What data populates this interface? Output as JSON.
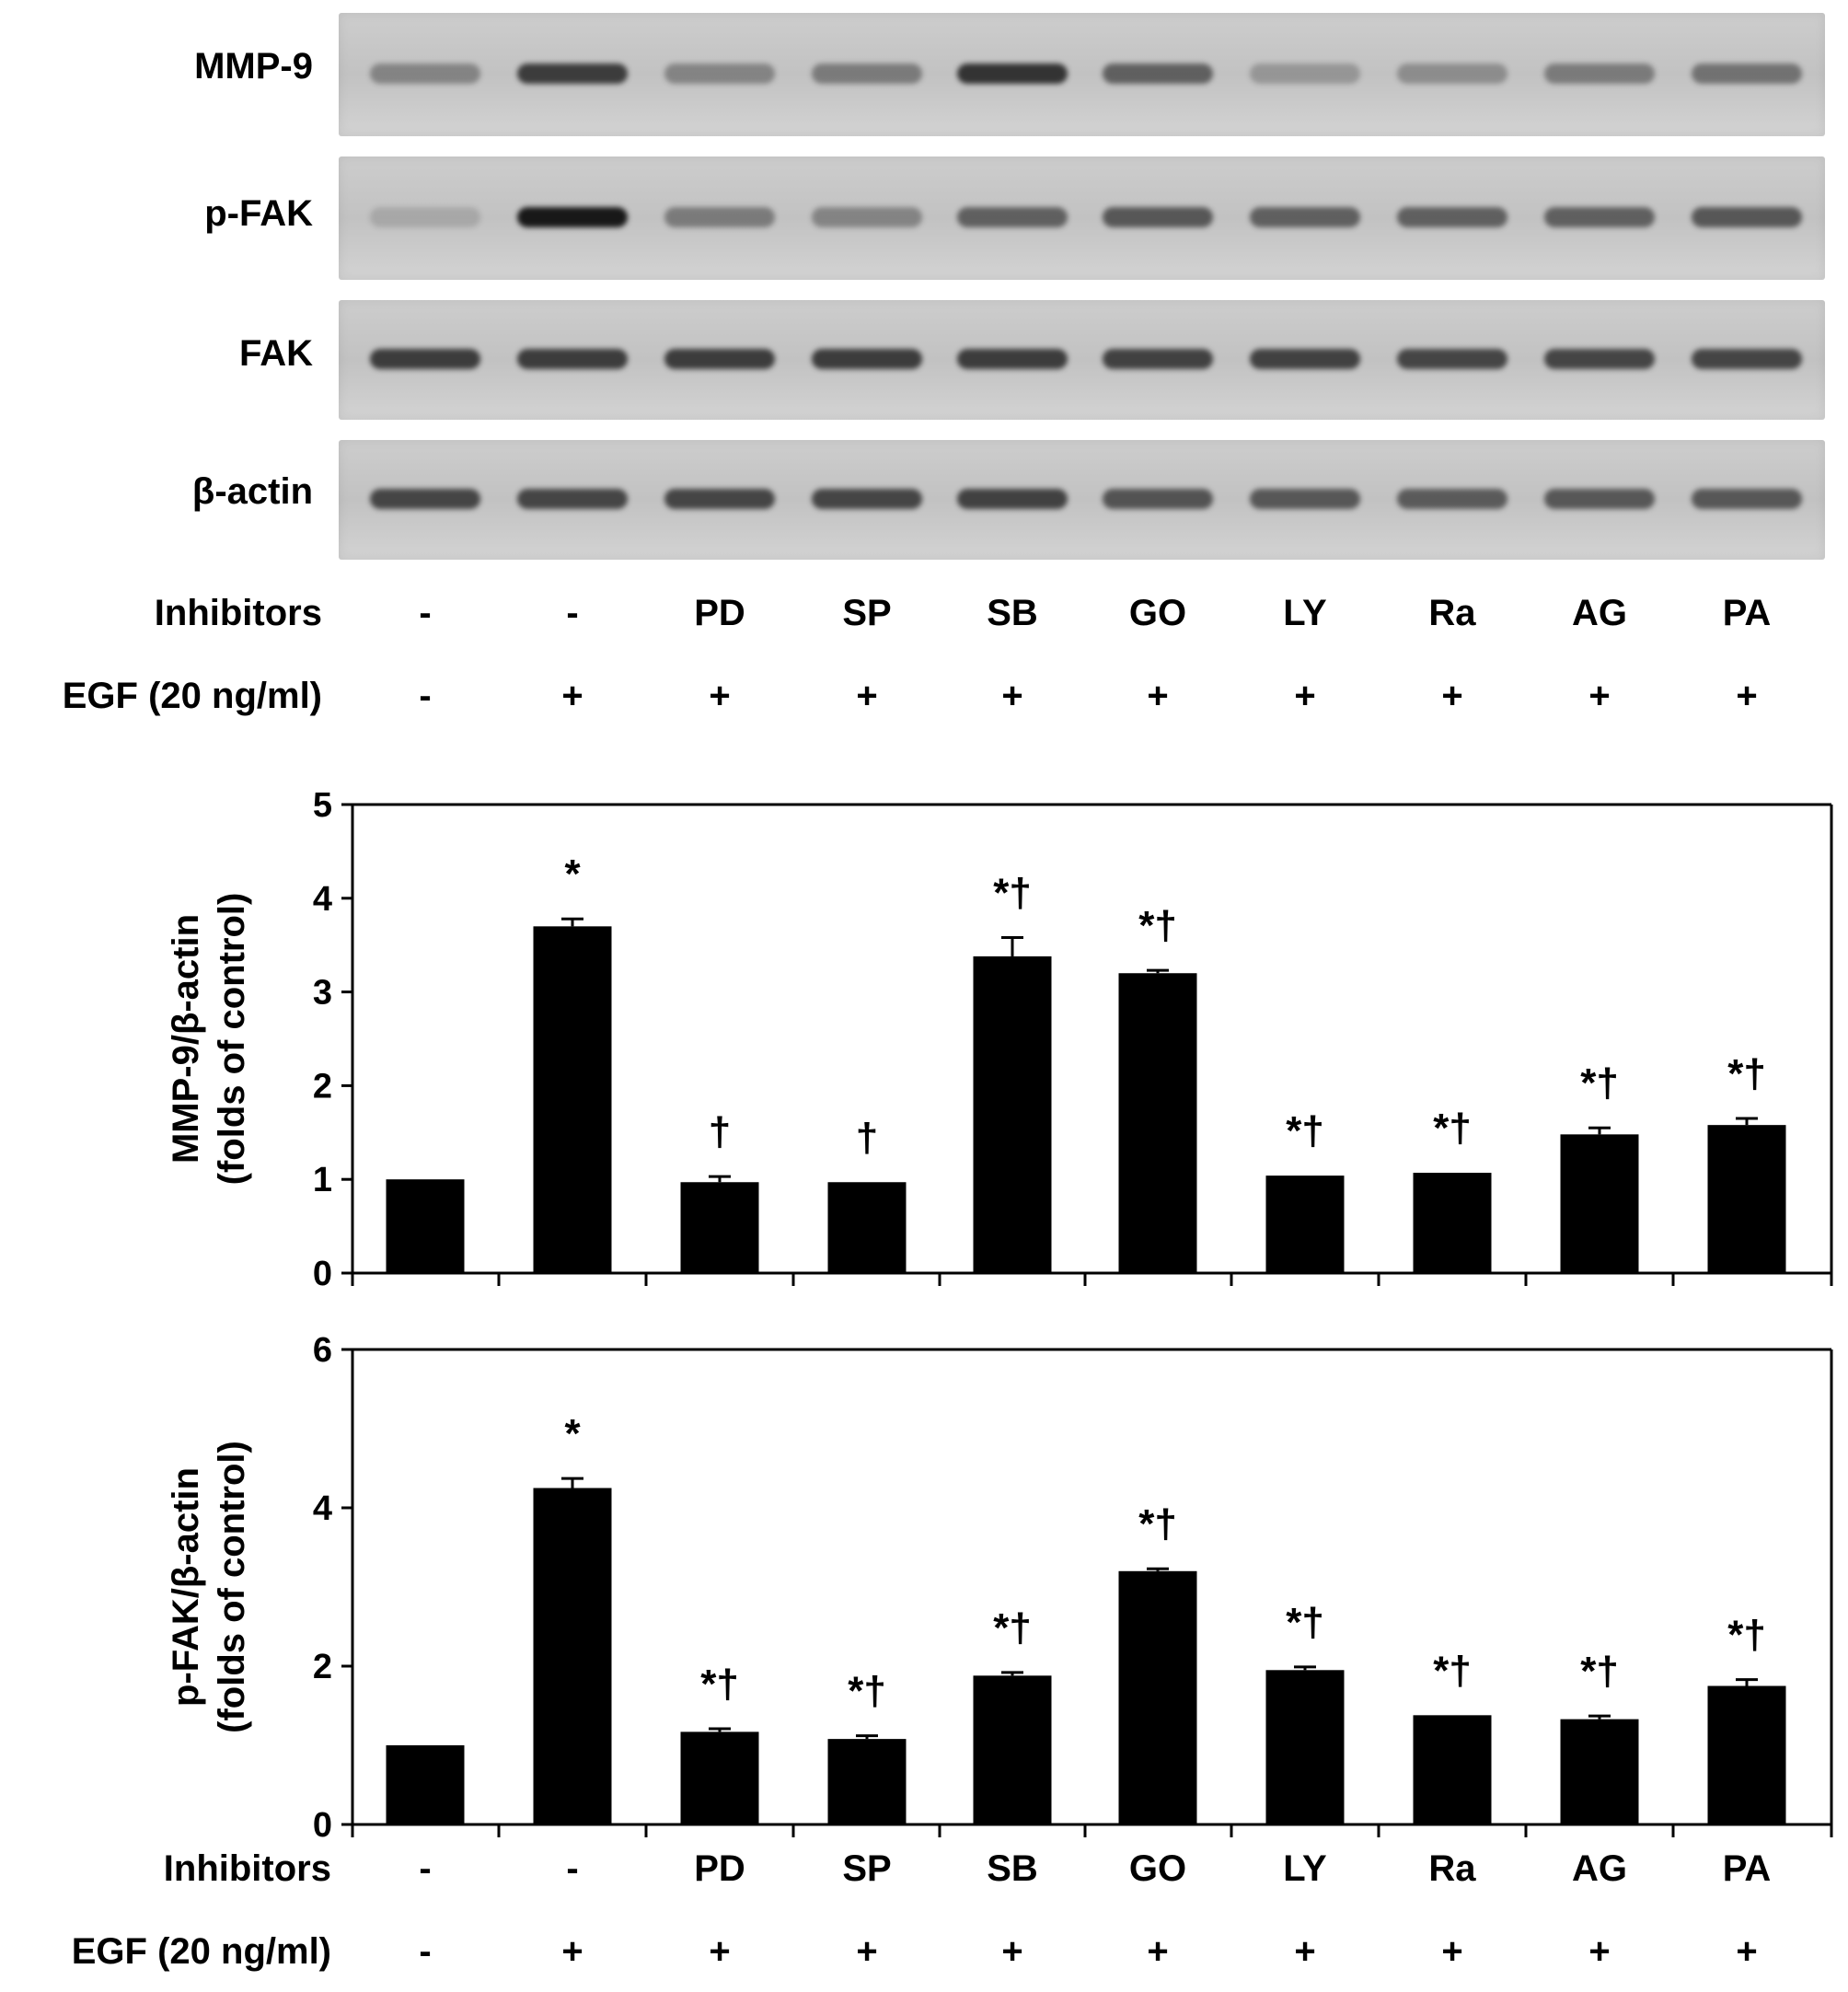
{
  "blot": {
    "rows": [
      {
        "label": "MMP-9"
      },
      {
        "label": "p-FAK"
      },
      {
        "label": "FAK"
      },
      {
        "label": "β-actin"
      }
    ],
    "inhibitors_label": "Inhibitors",
    "egf_label": "EGF (20 ng/ml)",
    "inhibitors": [
      "-",
      "-",
      "PD",
      "SP",
      "SB",
      "GO",
      "LY",
      "Ra",
      "AG",
      "PA"
    ],
    "egf": [
      "-",
      "+",
      "+",
      "+",
      "+",
      "+",
      "+",
      "+",
      "+",
      "+"
    ]
  },
  "chart_data": [
    {
      "type": "bar",
      "categories": [
        "-",
        "-",
        "PD",
        "SP",
        "SB",
        "GO",
        "LY",
        "Ra",
        "AG",
        "PA"
      ],
      "values": [
        1.0,
        3.7,
        0.97,
        0.97,
        3.38,
        3.2,
        1.04,
        1.07,
        1.48,
        1.58
      ],
      "errors": [
        0,
        0.08,
        0.06,
        0,
        0.2,
        0.03,
        0,
        0,
        0.07,
        0.07
      ],
      "annotations": [
        "",
        "*",
        "†",
        "†",
        "*†",
        "*†",
        "*†",
        "*†",
        "*†",
        "*†"
      ],
      "ylabel": [
        "MMP-9/β-actin",
        "(folds of control)"
      ],
      "ylim": [
        0,
        5
      ],
      "yticks": [
        "0",
        "1",
        "2",
        "3",
        "4",
        "5"
      ],
      "bar_color": "#000000"
    },
    {
      "type": "bar",
      "categories": [
        "-",
        "-",
        "PD",
        "SP",
        "SB",
        "GO",
        "LY",
        "Ra",
        "AG",
        "PA"
      ],
      "values": [
        1.0,
        4.25,
        1.17,
        1.08,
        1.88,
        3.2,
        1.95,
        1.38,
        1.33,
        1.75
      ],
      "errors": [
        0,
        0.12,
        0.04,
        0.04,
        0.04,
        0.03,
        0.04,
        0,
        0.04,
        0.08
      ],
      "annotations": [
        "",
        "*",
        "*†",
        "*†",
        "*†",
        "*†",
        "*†",
        "*†",
        "*†",
        "*†"
      ],
      "ylabel": [
        "p-FAK/β-actin",
        "(folds of control)"
      ],
      "ylim": [
        0,
        6
      ],
      "yticks": [
        "0",
        "2",
        "4",
        "6"
      ],
      "bar_color": "#000000"
    }
  ],
  "bottom_axis": {
    "inhibitors_label": "Inhibitors",
    "egf_label": "EGF (20 ng/ml)",
    "inhibitors": [
      "-",
      "-",
      "PD",
      "SP",
      "SB",
      "GO",
      "LY",
      "Ra",
      "AG",
      "PA"
    ],
    "egf": [
      "-",
      "+",
      "+",
      "+",
      "+",
      "+",
      "+",
      "+",
      "+",
      "+"
    ]
  }
}
